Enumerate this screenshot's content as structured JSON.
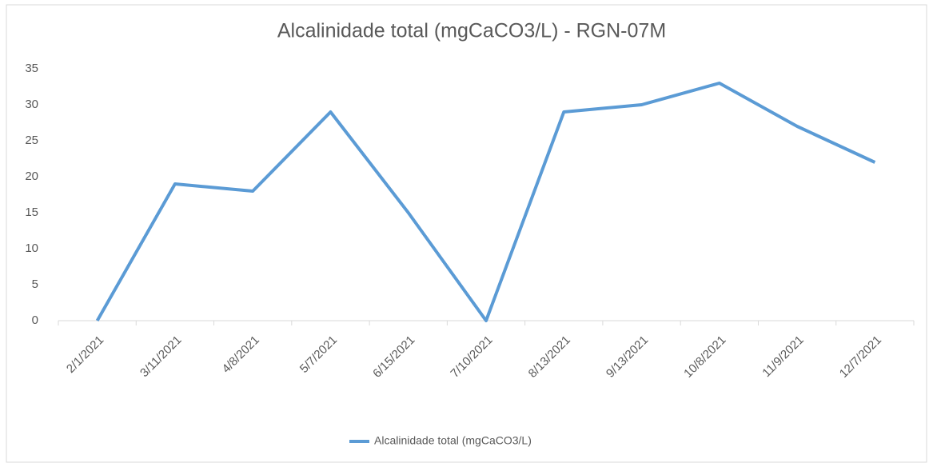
{
  "chart_data": {
    "type": "line",
    "title": "Alcalinidade total (mgCaCO3/L) - RGN-07M",
    "categories": [
      "2/1/2021",
      "3/11/2021",
      "4/8/2021",
      "5/7/2021",
      "6/15/2021",
      "7/10/2021",
      "8/13/2021",
      "9/13/2021",
      "10/8/2021",
      "11/9/2021",
      "12/7/2021"
    ],
    "series": [
      {
        "name": "Alcalinidade total (mgCaCO3/L)",
        "color": "#5b9bd5",
        "values": [
          0,
          19,
          18,
          29,
          15,
          0,
          29,
          30,
          33,
          27,
          22
        ]
      }
    ],
    "ylim": [
      0,
      35
    ],
    "yticks": [
      0,
      5,
      10,
      15,
      20,
      25,
      30,
      35
    ],
    "grid": false,
    "legend": "bottom"
  }
}
